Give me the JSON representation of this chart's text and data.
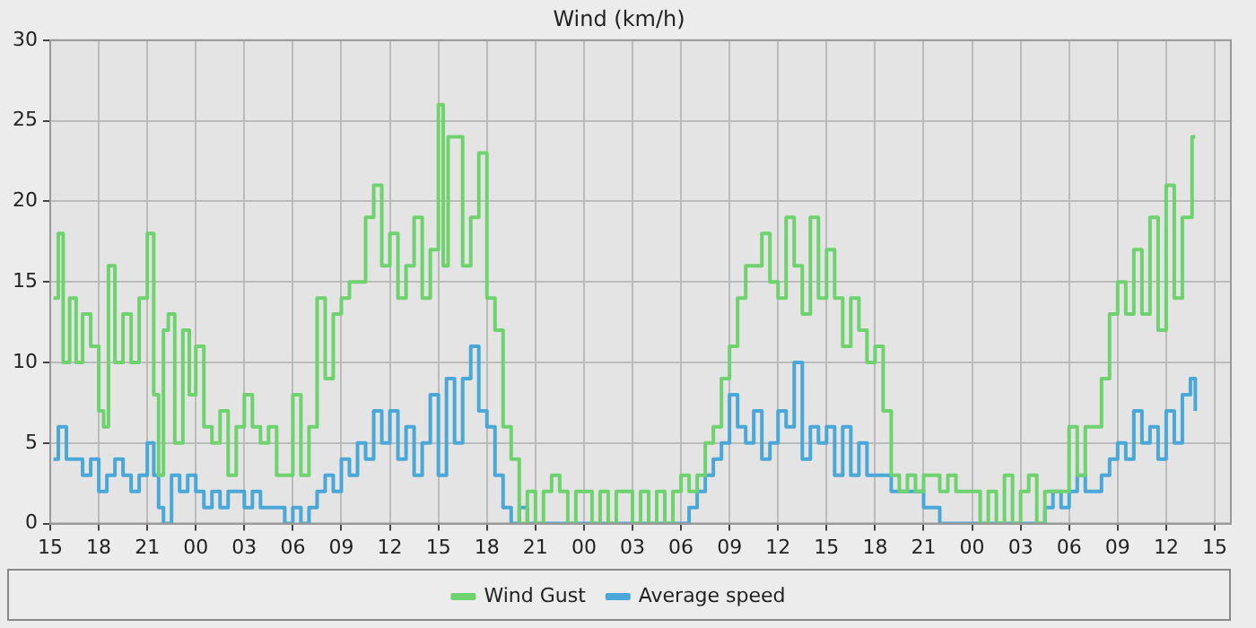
{
  "chart_data": {
    "type": "step",
    "title": "Wind (km/h)",
    "xlim": [
      15,
      88
    ],
    "ylim": [
      0,
      30
    ],
    "yticks": [
      0,
      5,
      10,
      15,
      20,
      25,
      30
    ],
    "xticks": [
      {
        "value": 15,
        "label": "15"
      },
      {
        "value": 18,
        "label": "18"
      },
      {
        "value": 21,
        "label": "21"
      },
      {
        "value": 24,
        "label": "00"
      },
      {
        "value": 27,
        "label": "03"
      },
      {
        "value": 30,
        "label": "06"
      },
      {
        "value": 33,
        "label": "09"
      },
      {
        "value": 36,
        "label": "12"
      },
      {
        "value": 39,
        "label": "15"
      },
      {
        "value": 42,
        "label": "18"
      },
      {
        "value": 45,
        "label": "21"
      },
      {
        "value": 48,
        "label": "00"
      },
      {
        "value": 51,
        "label": "03"
      },
      {
        "value": 54,
        "label": "06"
      },
      {
        "value": 57,
        "label": "09"
      },
      {
        "value": 60,
        "label": "12"
      },
      {
        "value": 63,
        "label": "15"
      },
      {
        "value": 66,
        "label": "18"
      },
      {
        "value": 69,
        "label": "21"
      },
      {
        "value": 72,
        "label": "00"
      },
      {
        "value": 75,
        "label": "03"
      },
      {
        "value": 78,
        "label": "06"
      },
      {
        "value": 81,
        "label": "09"
      },
      {
        "value": 84,
        "label": "12"
      },
      {
        "value": 87,
        "label": "15"
      }
    ],
    "grid": true,
    "legend": "bottom",
    "marker": "none",
    "line_style": "solid",
    "series": [
      {
        "name": "Wind Gust",
        "color": "#6ed36e",
        "x": [
          15.2,
          15.5,
          15.8,
          16.2,
          16.6,
          17,
          17.5,
          18,
          18.3,
          18.6,
          19,
          19.5,
          20,
          20.5,
          21,
          21.4,
          21.7,
          22,
          22.3,
          22.7,
          23.2,
          23.6,
          24,
          24.5,
          25,
          25.5,
          26,
          26.5,
          27,
          27.5,
          28,
          28.5,
          29,
          29.5,
          30,
          30.5,
          31,
          31.5,
          32,
          32.5,
          33,
          33.5,
          34,
          34.5,
          35,
          35.5,
          36,
          36.5,
          37,
          37.5,
          38,
          38.5,
          39,
          39.3,
          39.6,
          40,
          40.5,
          41,
          41.5,
          42,
          42.5,
          43,
          43.5,
          44,
          44.5,
          45,
          45.5,
          46,
          46.5,
          47,
          47.5,
          48,
          48.5,
          49,
          49.5,
          50,
          51,
          51.5,
          52,
          52.5,
          53,
          53.5,
          54,
          54.5,
          55,
          55.5,
          56,
          56.5,
          57,
          57.5,
          58,
          58.5,
          59,
          59.5,
          60,
          60.5,
          61,
          61.5,
          62,
          62.5,
          63,
          63.5,
          64,
          64.5,
          65,
          65.5,
          66,
          66.5,
          67,
          67.5,
          68,
          68.5,
          69,
          70,
          70.5,
          71,
          72,
          72.5,
          73,
          73.5,
          74,
          74.5,
          75,
          75.5,
          76,
          76.5,
          77,
          78,
          78.5,
          79,
          80,
          80.5,
          81,
          81.5,
          82,
          82.5,
          83,
          83.5,
          84,
          84.5,
          85,
          85.3,
          85.6,
          85.8
        ],
        "values": [
          14,
          18,
          10,
          14,
          10,
          13,
          11,
          7,
          6,
          16,
          10,
          13,
          10,
          14,
          18,
          8,
          3,
          12,
          13,
          5,
          12,
          8,
          11,
          6,
          5,
          7,
          3,
          6,
          8,
          6,
          5,
          6,
          3,
          3,
          8,
          3,
          6,
          14,
          9,
          13,
          14,
          15,
          15,
          19,
          21,
          16,
          18,
          14,
          16,
          19,
          14,
          17,
          26,
          16,
          24,
          24,
          16,
          19,
          23,
          14,
          12,
          6,
          4,
          0,
          2,
          0,
          2,
          3,
          2,
          0,
          2,
          2,
          0,
          2,
          0,
          2,
          0,
          2,
          0,
          2,
          0,
          2,
          3,
          2,
          3,
          5,
          6,
          9,
          11,
          14,
          16,
          16,
          18,
          15,
          14,
          19,
          16,
          13,
          19,
          14,
          17,
          14,
          11,
          14,
          12,
          10,
          11,
          7,
          3,
          2,
          3,
          2,
          3,
          2,
          3,
          2,
          2,
          0,
          2,
          0,
          3,
          0,
          2,
          3,
          0,
          2,
          2,
          6,
          3,
          6,
          9,
          13,
          15,
          13,
          17,
          13,
          19,
          12,
          21,
          14,
          19,
          19,
          24,
          24
        ]
      },
      {
        "name": "Average speed",
        "color": "#4aa8d8",
        "x": [
          15.2,
          15.5,
          16,
          17,
          17.5,
          18,
          18.5,
          19,
          19.5,
          20,
          20.5,
          21,
          21.4,
          21.7,
          22,
          22.5,
          23,
          23.5,
          24,
          24.5,
          25,
          25.5,
          26,
          27,
          27.5,
          28,
          29,
          29.5,
          30,
          30.5,
          31,
          31.5,
          32,
          32.5,
          33,
          33.5,
          34,
          34.5,
          35,
          35.5,
          36,
          36.5,
          37,
          37.5,
          38,
          38.5,
          39,
          39.5,
          40,
          40.5,
          41,
          41.5,
          42,
          42.5,
          43,
          43.5,
          44,
          44.5,
          45.5,
          50,
          54,
          54.5,
          55,
          55.5,
          56,
          56.5,
          57,
          57.5,
          58,
          58.5,
          59,
          59.5,
          60,
          60.5,
          61,
          61.5,
          62,
          62.5,
          63,
          63.5,
          64,
          64.5,
          65,
          65.5,
          66,
          67,
          68,
          69,
          70,
          76,
          76.5,
          77,
          77.5,
          78,
          78.5,
          79,
          80,
          80.5,
          81,
          81.5,
          82,
          82.5,
          83,
          83.5,
          84,
          84.5,
          85,
          85.5,
          85.8
        ],
        "values": [
          4,
          6,
          4,
          3,
          4,
          2,
          3,
          4,
          3,
          2,
          3,
          5,
          3,
          1,
          0,
          3,
          2,
          3,
          2,
          1,
          2,
          1,
          2,
          1,
          2,
          1,
          1,
          0,
          1,
          0,
          1,
          2,
          3,
          2,
          4,
          3,
          5,
          4,
          7,
          5,
          7,
          4,
          6,
          3,
          5,
          8,
          3,
          9,
          5,
          9,
          11,
          7,
          6,
          3,
          1,
          0,
          1,
          0,
          0,
          0,
          0,
          1,
          2,
          3,
          4,
          5,
          8,
          6,
          5,
          7,
          4,
          5,
          7,
          6,
          10,
          4,
          6,
          5,
          6,
          3,
          6,
          3,
          5,
          3,
          3,
          2,
          2,
          1,
          0,
          0,
          1,
          2,
          1,
          2,
          3,
          2,
          3,
          4,
          5,
          4,
          7,
          5,
          6,
          4,
          7,
          5,
          8,
          9,
          7
        ]
      }
    ]
  }
}
